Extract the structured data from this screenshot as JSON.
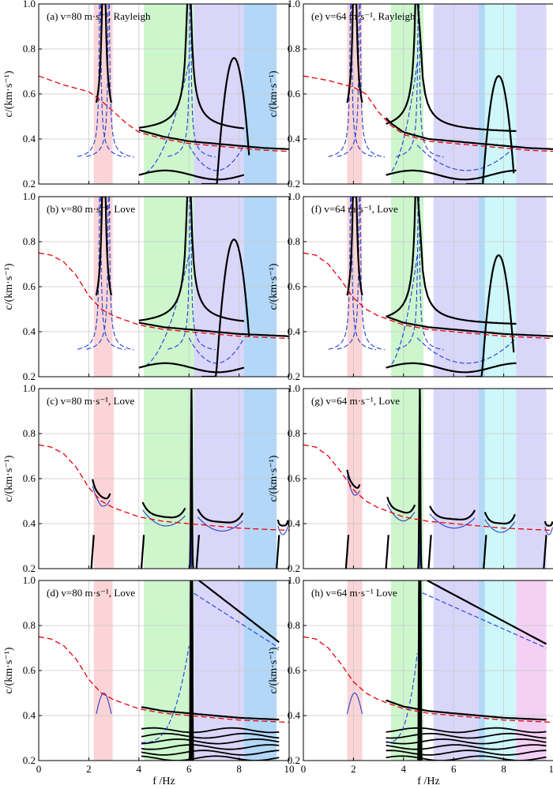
{
  "figure": {
    "xlabel": "f /Hz",
    "ylabel": "c/(km·s⁻¹)",
    "xlim": [
      0,
      10
    ],
    "ylim": [
      0.2,
      1.0
    ],
    "x_ticks": [
      "0",
      "2",
      "4",
      "6",
      "8",
      "10"
    ],
    "y_ticks": [
      "0.2",
      "0.4",
      "0.6",
      "0.8",
      "1.0"
    ],
    "colors": {
      "dispersion_reference": "#e8000b",
      "solid_curves": "#000000",
      "dashed_curves": "#1f3fd6",
      "thin_curves": "#1530c8",
      "band_red": "#f9cfd2",
      "band_green": "#c8f5c8",
      "band_purple": "#d6d2f8",
      "band_blue": "#aad3f6",
      "band_cyan": "#c9f6f8",
      "band_pink": "#f3ccf3"
    }
  },
  "chart_data": [
    {
      "id": "a",
      "title": "(a) v=80 m·s⁻¹, Rayleigh",
      "type": "line",
      "style": "A",
      "speed": 80,
      "bands": [
        {
          "x": [
            2.2,
            2.95
          ],
          "color": "red"
        },
        {
          "x": [
            4.2,
            6.2
          ],
          "color": "green"
        },
        {
          "x": [
            6.2,
            8.2
          ],
          "color": "purple"
        },
        {
          "x": [
            8.2,
            9.5
          ],
          "color": "blue"
        }
      ],
      "reference": {
        "x": [
          0,
          1,
          2,
          2.5,
          3,
          3.5,
          4,
          5,
          6,
          7,
          8,
          9,
          10
        ],
        "y": [
          0.68,
          0.64,
          0.61,
          0.57,
          0.52,
          0.47,
          0.43,
          0.4,
          0.38,
          0.37,
          0.36,
          0.35,
          0.345
        ]
      },
      "dashed_resonances": [
        2.45,
        2.8,
        6.05
      ],
      "resonances": [
        2.6,
        6.0
      ],
      "apex": [
        7.8,
        0.76
      ],
      "branch_x": [
        4.0,
        8.2
      ]
    },
    {
      "id": "b",
      "title": "(b) v=80 m·s⁻¹, Love",
      "type": "line",
      "style": "A",
      "speed": 80,
      "bands": [
        {
          "x": [
            2.2,
            2.95
          ],
          "color": "red"
        },
        {
          "x": [
            4.2,
            6.2
          ],
          "color": "green"
        },
        {
          "x": [
            6.2,
            8.2
          ],
          "color": "purple"
        },
        {
          "x": [
            8.2,
            9.5
          ],
          "color": "blue"
        }
      ],
      "reference": {
        "x": [
          0,
          0.5,
          1,
          1.5,
          2,
          2.5,
          3,
          3.5,
          4,
          5,
          6,
          7,
          8,
          9,
          10
        ],
        "y": [
          0.75,
          0.74,
          0.71,
          0.65,
          0.56,
          0.5,
          0.47,
          0.45,
          0.43,
          0.41,
          0.4,
          0.39,
          0.38,
          0.375,
          0.37
        ]
      },
      "dashed_resonances": [
        2.45,
        2.8,
        6.05
      ],
      "resonances": [
        2.6,
        6.0
      ],
      "apex": [
        7.8,
        0.81
      ],
      "branch_x": [
        4.0,
        8.2
      ]
    },
    {
      "id": "c",
      "title": "(c) v=80 m·s⁻¹, Love",
      "type": "line",
      "style": "C",
      "speed": 80,
      "bands": [
        {
          "x": [
            2.2,
            3.0
          ],
          "color": "red"
        },
        {
          "x": [
            4.2,
            6.2
          ],
          "color": "green"
        },
        {
          "x": [
            6.2,
            8.2
          ],
          "color": "purple"
        },
        {
          "x": [
            8.2,
            9.5
          ],
          "color": "blue"
        }
      ],
      "reference": {
        "x": [
          0,
          0.5,
          1,
          1.5,
          2,
          2.5,
          3,
          3.5,
          4,
          5,
          6,
          7,
          8,
          9,
          10
        ],
        "y": [
          0.75,
          0.74,
          0.71,
          0.65,
          0.56,
          0.5,
          0.47,
          0.45,
          0.43,
          0.41,
          0.4,
          0.39,
          0.38,
          0.375,
          0.37
        ]
      },
      "segments": [
        [
          2.1,
          2.9
        ],
        [
          4.1,
          5.9
        ],
        [
          6.3,
          8.2
        ],
        [
          9.5,
          10
        ]
      ],
      "spike": 6.1
    },
    {
      "id": "d",
      "title": "(d) v=80 m·s⁻¹, Love",
      "type": "line",
      "style": "D",
      "speed": 80,
      "bands": [
        {
          "x": [
            2.2,
            2.95
          ],
          "color": "red"
        },
        {
          "x": [
            4.2,
            6.2
          ],
          "color": "green"
        },
        {
          "x": [
            6.2,
            8.2
          ],
          "color": "purple"
        },
        {
          "x": [
            8.2,
            9.5
          ],
          "color": "blue"
        }
      ],
      "reference": {
        "x": [
          0,
          0.5,
          1,
          1.5,
          2,
          2.5,
          3,
          3.5,
          4,
          5,
          6,
          7,
          8,
          9,
          10
        ],
        "y": [
          0.75,
          0.74,
          0.71,
          0.65,
          0.56,
          0.5,
          0.47,
          0.45,
          0.43,
          0.41,
          0.4,
          0.39,
          0.38,
          0.375,
          0.37
        ]
      },
      "branch_x": [
        4.1,
        9.6
      ],
      "spike": 6.1
    },
    {
      "id": "e",
      "title": "(e) v=64 m·s⁻¹, Rayleigh",
      "type": "line",
      "style": "A",
      "speed": 64,
      "bands": [
        {
          "x": [
            1.75,
            2.35
          ],
          "color": "red"
        },
        {
          "x": [
            3.5,
            4.8
          ],
          "color": "green"
        },
        {
          "x": [
            5.2,
            7.0
          ],
          "color": "purple"
        },
        {
          "x": [
            7.0,
            7.25
          ],
          "color": "blue"
        },
        {
          "x": [
            7.25,
            8.5
          ],
          "color": "cyan"
        },
        {
          "x": [
            8.5,
            9.7
          ],
          "color": "purple"
        }
      ],
      "reference": {
        "x": [
          0,
          1,
          2,
          2.5,
          3,
          3.5,
          4,
          5,
          6,
          7,
          8,
          9,
          10
        ],
        "y": [
          0.68,
          0.66,
          0.63,
          0.6,
          0.52,
          0.46,
          0.42,
          0.39,
          0.38,
          0.37,
          0.36,
          0.35,
          0.345
        ]
      },
      "dashed_resonances": [
        1.9,
        2.25,
        4.6
      ],
      "resonances": [
        2.05,
        4.55
      ],
      "apex": [
        7.8,
        0.68
      ],
      "branch_x": [
        3.3,
        8.5
      ]
    },
    {
      "id": "f",
      "title": "(f) v=64 m·s⁻¹, Love",
      "type": "line",
      "style": "A",
      "speed": 64,
      "bands": [
        {
          "x": [
            1.75,
            2.35
          ],
          "color": "red"
        },
        {
          "x": [
            3.5,
            4.8
          ],
          "color": "green"
        },
        {
          "x": [
            5.2,
            7.0
          ],
          "color": "purple"
        },
        {
          "x": [
            7.0,
            7.25
          ],
          "color": "blue"
        },
        {
          "x": [
            7.25,
            8.5
          ],
          "color": "cyan"
        },
        {
          "x": [
            8.5,
            9.7
          ],
          "color": "purple"
        }
      ],
      "reference": {
        "x": [
          0,
          0.5,
          1,
          1.5,
          2,
          2.5,
          3,
          3.5,
          4,
          5,
          6,
          7,
          8,
          9,
          10
        ],
        "y": [
          0.75,
          0.74,
          0.7,
          0.63,
          0.55,
          0.5,
          0.47,
          0.45,
          0.43,
          0.41,
          0.4,
          0.39,
          0.38,
          0.375,
          0.37
        ]
      },
      "dashed_resonances": [
        1.9,
        2.25,
        4.6
      ],
      "resonances": [
        2.05,
        4.55
      ],
      "apex": [
        7.8,
        0.74
      ],
      "branch_x": [
        3.3,
        8.5
      ]
    },
    {
      "id": "g",
      "title": "(g) v=64 m·s⁻¹, Love",
      "type": "line",
      "style": "C",
      "speed": 64,
      "bands": [
        {
          "x": [
            1.75,
            2.35
          ],
          "color": "red"
        },
        {
          "x": [
            3.5,
            4.8
          ],
          "color": "green"
        },
        {
          "x": [
            5.2,
            7.0
          ],
          "color": "purple"
        },
        {
          "x": [
            7.0,
            7.25
          ],
          "color": "blue"
        },
        {
          "x": [
            7.25,
            8.5
          ],
          "color": "cyan"
        },
        {
          "x": [
            8.5,
            9.7
          ],
          "color": "purple"
        }
      ],
      "reference": {
        "x": [
          0,
          0.5,
          1,
          1.5,
          2,
          2.5,
          3,
          3.5,
          4,
          5,
          6,
          7,
          8,
          9,
          10
        ],
        "y": [
          0.75,
          0.74,
          0.7,
          0.63,
          0.55,
          0.5,
          0.47,
          0.45,
          0.43,
          0.41,
          0.4,
          0.39,
          0.38,
          0.375,
          0.37
        ]
      },
      "segments": [
        [
          1.7,
          2.3
        ],
        [
          3.3,
          4.5
        ],
        [
          5.0,
          6.9
        ],
        [
          7.2,
          8.5
        ],
        [
          9.6,
          10
        ]
      ],
      "spike": 4.65
    },
    {
      "id": "h",
      "title": "(h) v=64 m·s⁻¹ Love",
      "type": "line",
      "style": "D",
      "speed": 64,
      "bands": [
        {
          "x": [
            1.75,
            2.35
          ],
          "color": "red"
        },
        {
          "x": [
            3.5,
            4.8
          ],
          "color": "green"
        },
        {
          "x": [
            5.2,
            7.0
          ],
          "color": "purple"
        },
        {
          "x": [
            7.0,
            7.25
          ],
          "color": "blue"
        },
        {
          "x": [
            7.25,
            8.5
          ],
          "color": "cyan"
        },
        {
          "x": [
            8.5,
            9.7
          ],
          "color": "pink"
        }
      ],
      "reference": {
        "x": [
          0,
          0.5,
          1,
          1.5,
          2,
          2.5,
          3,
          3.5,
          4,
          5,
          6,
          7,
          8,
          9,
          10
        ],
        "y": [
          0.75,
          0.74,
          0.7,
          0.63,
          0.55,
          0.5,
          0.47,
          0.45,
          0.43,
          0.41,
          0.4,
          0.39,
          0.38,
          0.375,
          0.37
        ]
      },
      "branch_x": [
        3.3,
        9.7
      ],
      "spike": 4.65
    }
  ]
}
